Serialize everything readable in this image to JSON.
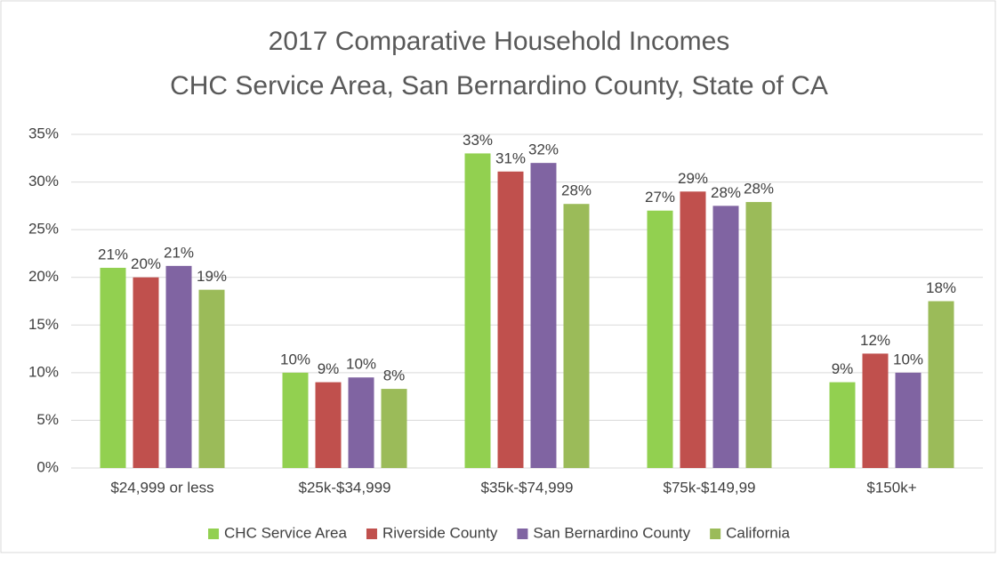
{
  "chart_data": {
    "type": "bar",
    "title": "2017 Comparative Household Incomes",
    "subtitle": "CHC Service Area, San Bernardino County, State of CA",
    "categories": [
      "$24,999 or less",
      "$25k-$34,999",
      "$35k-$74,999",
      "$75k-$149,99",
      "$150k+"
    ],
    "series": [
      {
        "name": "CHC Service Area",
        "color": "#92d050",
        "values": [
          21,
          10,
          33,
          27,
          9
        ],
        "value_labels": [
          "21%",
          "10%",
          "33%",
          "27%",
          "9%"
        ]
      },
      {
        "name": "Riverside County",
        "color": "#c0504d",
        "values": [
          20,
          9,
          31.1,
          29,
          12
        ],
        "value_labels": [
          "20%",
          "9%",
          "31%",
          "29%",
          "12%"
        ]
      },
      {
        "name": "San Bernardino County",
        "color": "#8064a2",
        "values": [
          21.2,
          9.5,
          32,
          27.5,
          10
        ],
        "value_labels": [
          "21%",
          "10%",
          "32%",
          "28%",
          "10%"
        ]
      },
      {
        "name": "California",
        "color": "#9bbb59",
        "values": [
          18.7,
          8.3,
          27.7,
          27.9,
          17.5
        ],
        "value_labels": [
          "19%",
          "8%",
          "28%",
          "28%",
          "18%"
        ]
      }
    ],
    "ylim": [
      0,
      35
    ],
    "yticks": [
      {
        "value": 0,
        "label": "0%"
      },
      {
        "value": 5,
        "label": "5%"
      },
      {
        "value": 10,
        "label": "10%"
      },
      {
        "value": 15,
        "label": "15%"
      },
      {
        "value": 20,
        "label": "20%"
      },
      {
        "value": 25,
        "label": "25%"
      },
      {
        "value": 30,
        "label": "30%"
      },
      {
        "value": 35,
        "label": "35%"
      }
    ],
    "grid": true,
    "legend": "bottom"
  }
}
